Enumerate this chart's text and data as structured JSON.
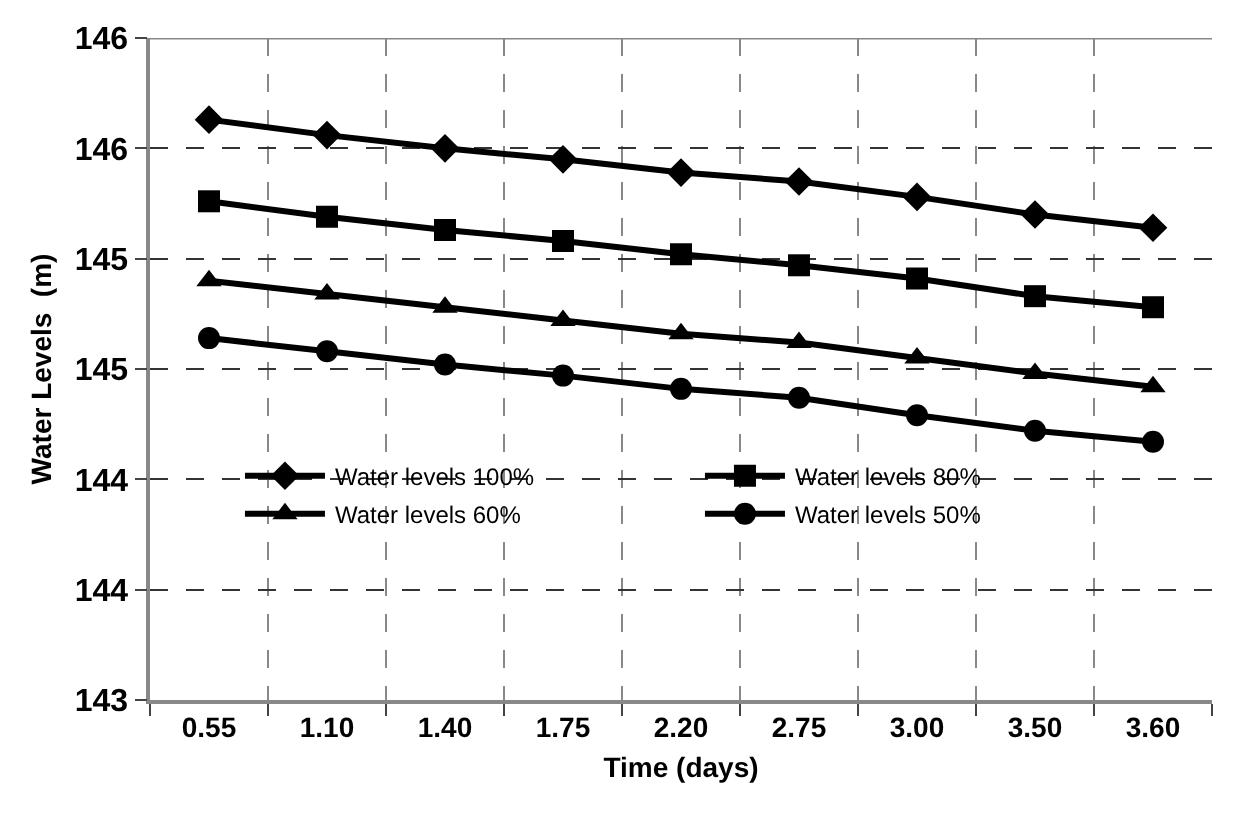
{
  "chart_data": {
    "type": "line",
    "xlabel": "Time (days)",
    "ylabel": "Water Levels  (m)",
    "categories": [
      "0.55",
      "1.10",
      "1.40",
      "1.75",
      "2.20",
      "2.75",
      "3.00",
      "3.50",
      "3.60"
    ],
    "series": [
      {
        "name": "Water levels 100%",
        "color": "#000000",
        "marker": "diamond",
        "values": [
          145.63,
          145.56,
          145.5,
          145.45,
          145.39,
          145.35,
          145.28,
          145.2,
          145.14
        ]
      },
      {
        "name": "Water levels 80%",
        "color": "#000000",
        "marker": "square",
        "values": [
          145.26,
          145.19,
          145.13,
          145.08,
          145.02,
          144.97,
          144.91,
          144.83,
          144.78
        ]
      },
      {
        "name": "Water levels 60%",
        "color": "#000000",
        "marker": "triangle",
        "values": [
          144.9,
          144.84,
          144.78,
          144.72,
          144.66,
          144.62,
          144.55,
          144.48,
          144.42
        ]
      },
      {
        "name": "Water levels 50%",
        "color": "#000000",
        "marker": "circle",
        "values": [
          144.64,
          144.58,
          144.52,
          144.47,
          144.41,
          144.37,
          144.29,
          144.22,
          144.17
        ]
      }
    ],
    "ylim": [
      143,
      146
    ],
    "yticks": [
      143,
      {
        "value": 143.5,
        "label": "144"
      },
      144,
      {
        "value": 144.5,
        "label": "145"
      },
      145,
      {
        "value": 145.5,
        "label": "146"
      },
      146
    ],
    "grid": true,
    "legend": "center",
    "line_style": "solid"
  }
}
